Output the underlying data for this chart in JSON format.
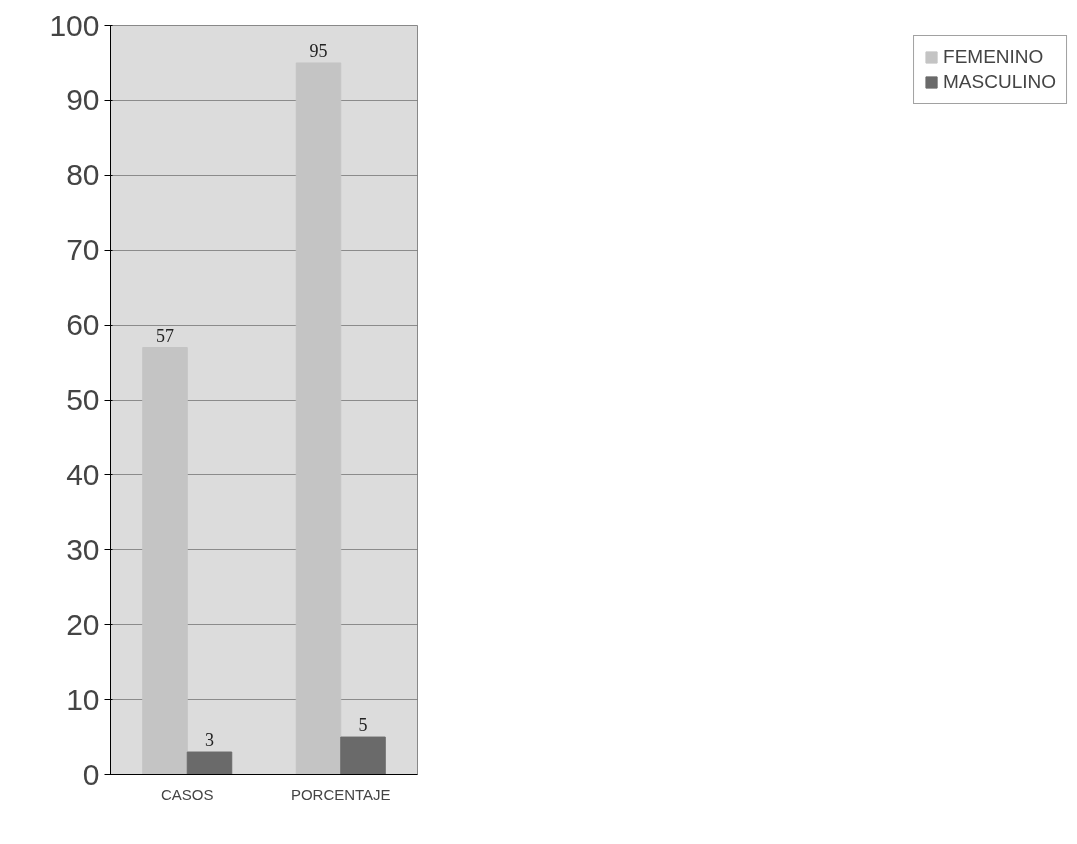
{
  "chart_data": {
    "type": "bar",
    "categories": [
      "CASOS",
      "PORCENTAJE"
    ],
    "series": [
      {
        "name": "FEMENINO",
        "color": "#c4c4c4",
        "values": [
          57,
          95
        ]
      },
      {
        "name": "MASCULINO",
        "color": "#6a6a6a",
        "values": [
          3,
          5
        ]
      }
    ],
    "ylim": [
      0,
      100
    ],
    "yticks": [
      0,
      10,
      20,
      30,
      40,
      50,
      60,
      70,
      80,
      90,
      100
    ],
    "grid": "y",
    "legend": "right",
    "data_labels": true
  }
}
